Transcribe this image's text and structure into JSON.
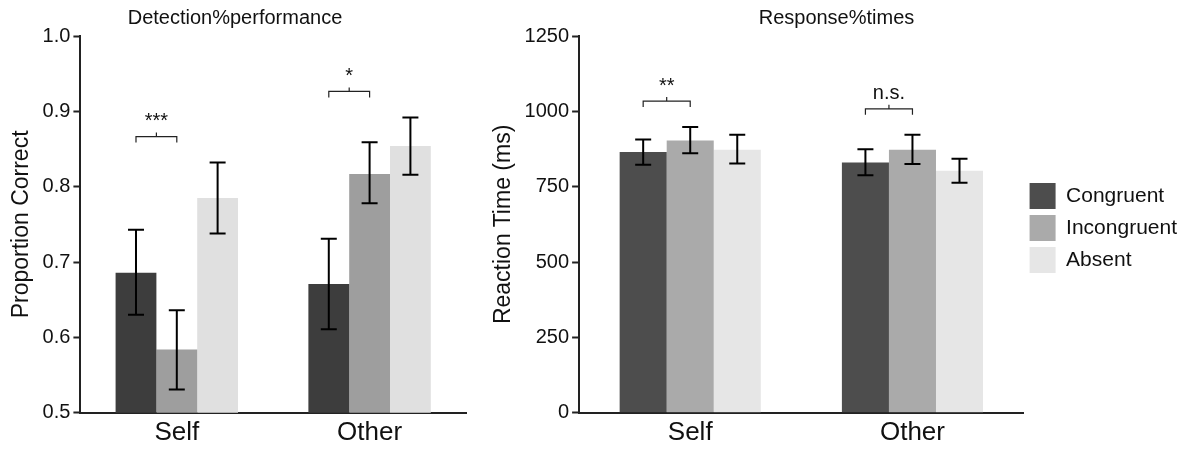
{
  "chart_data": [
    {
      "type": "bar",
      "title": "Detection%performance",
      "ylabel": "Proportion Correct",
      "categories": [
        "Self",
        "Other"
      ],
      "series": [
        {
          "color": "#3d3d3d",
          "values": [
            0.686,
            0.671
          ],
          "errors": [
            [
              0.63,
              0.743
            ],
            [
              0.611,
              0.731
            ]
          ]
        },
        {
          "color": "#9e9e9e",
          "values": [
            0.584,
            0.817
          ],
          "errors": [
            [
              0.531,
              0.636
            ],
            [
              0.778,
              0.859
            ]
          ]
        },
        {
          "color": "#e0e0e0",
          "values": [
            0.785,
            0.854
          ],
          "errors": [
            [
              0.738,
              0.832
            ],
            [
              0.816,
              0.892
            ]
          ]
        }
      ],
      "ylim": [
        0.5,
        1.0
      ],
      "yticks": [
        {
          "value": 0.5,
          "label": "0.5"
        },
        {
          "value": 0.6,
          "label": "0.6"
        },
        {
          "value": 0.7,
          "label": "0.7"
        },
        {
          "value": 0.8,
          "label": "0.8"
        },
        {
          "value": 0.9,
          "label": "0.9"
        },
        {
          "value": 1.0,
          "label": "1.0"
        }
      ],
      "grid": false,
      "legend": false,
      "annotations": [
        "***",
        "*"
      ]
    },
    {
      "type": "bar",
      "title": "Response%times",
      "ylabel": "Reaction Time (ms)",
      "categories": [
        "Self",
        "Other"
      ],
      "series": [
        {
          "name": "Congruent",
          "color": "#4d4d4d",
          "values": [
            865,
            830
          ],
          "errors": [
            [
              823,
              907
            ],
            [
              788,
              874
            ]
          ]
        },
        {
          "name": "Incongruent",
          "color": "#aaaaaa",
          "values": [
            903,
            873
          ],
          "errors": [
            [
              861,
              948
            ],
            [
              825,
              922
            ]
          ]
        },
        {
          "name": "Absent",
          "color": "#e6e6e6",
          "values": [
            873,
            803
          ],
          "errors": [
            [
              827,
              922
            ],
            [
              763,
              843
            ]
          ]
        }
      ],
      "ylim": [
        0,
        1250
      ],
      "yticks": [
        0,
        250,
        500,
        750,
        1000,
        1250
      ],
      "grid": false,
      "legend": "right",
      "annotations": [
        "**",
        "n.s."
      ]
    }
  ]
}
